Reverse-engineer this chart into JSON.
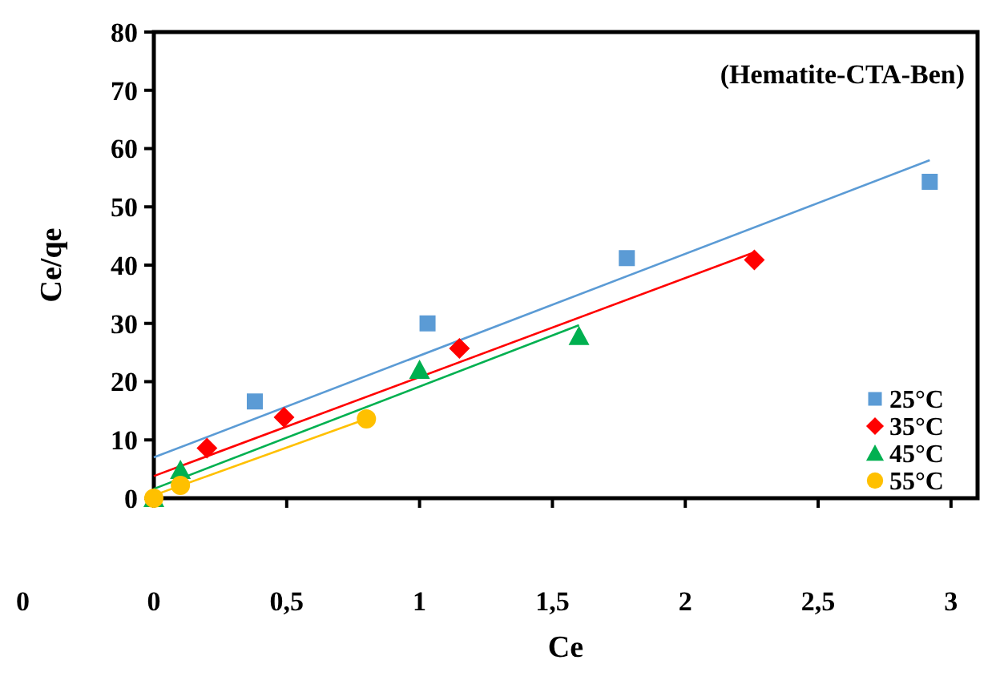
{
  "chart_data": {
    "type": "scatter",
    "title": "(Hematite-CTA-Ben)",
    "xlabel": "Ce",
    "ylabel": "Ce/qe",
    "xlim": [
      0,
      3.1
    ],
    "ylim": [
      0,
      80
    ],
    "xticks": [
      0,
      {
        "value": 0.5,
        "label": "0,5"
      },
      1,
      {
        "value": 1.5,
        "label": "1,5"
      },
      2,
      {
        "value": 2.5,
        "label": "2,5"
      },
      3
    ],
    "yticks": [
      0,
      10,
      20,
      30,
      40,
      50,
      60,
      70,
      80
    ],
    "grid": false,
    "legend": "bottom right",
    "annotations": [
      "0"
    ],
    "series": [
      {
        "name": "25°C",
        "marker": "square",
        "color": "#5b9bd5",
        "x": [
          0.38,
          1.03,
          1.78,
          2.92
        ],
        "values": [
          16.6,
          30,
          41.2,
          54.3
        ]
      },
      {
        "name": "35°C",
        "marker": "diamond",
        "color": "#ff0000",
        "x": [
          0.2,
          0.49,
          1.15,
          2.26
        ],
        "values": [
          8.6,
          13.9,
          25.7,
          40.9
        ]
      },
      {
        "name": "45°C",
        "marker": "triangle",
        "color": "#00b050",
        "x": [
          0,
          0.1,
          1.0,
          1.6
        ],
        "values": [
          0,
          4.8,
          22,
          27.8
        ]
      },
      {
        "name": "55°C",
        "marker": "circle",
        "color": "#ffc000",
        "x": [
          0,
          0.1,
          0.8
        ],
        "values": [
          0,
          2.2,
          13.6
        ]
      },
      {
        "type": "line",
        "marker": "none",
        "color": "#5b9bd5",
        "x": [
          0,
          2.92
        ],
        "values": [
          7,
          58
        ]
      },
      {
        "type": "line",
        "marker": "none",
        "color": "#ff0000",
        "x": [
          0,
          2.26
        ],
        "values": [
          3.8,
          42.2
        ]
      },
      {
        "type": "line",
        "marker": "none",
        "color": "#00b050",
        "x": [
          0,
          1.6
        ],
        "values": [
          1.6,
          29.7
        ]
      },
      {
        "type": "line",
        "marker": "none",
        "color": "#ffc000",
        "x": [
          0,
          0.8
        ],
        "values": [
          0.5,
          13.6
        ]
      }
    ]
  }
}
